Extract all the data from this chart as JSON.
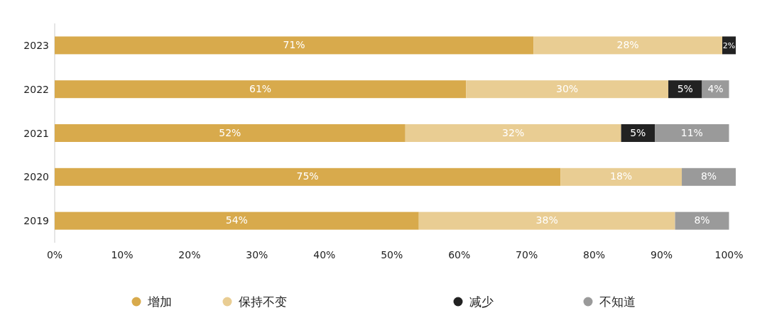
{
  "chart_data": {
    "type": "bar",
    "orientation": "horizontal",
    "stacked": true,
    "categories": [
      "2023",
      "2022",
      "2021",
      "2020",
      "2019"
    ],
    "series": [
      {
        "name": "增加",
        "color": "#d8aa4c",
        "values": [
          71,
          61,
          52,
          75,
          54
        ],
        "value_labels": [
          "71%",
          "61%",
          "52%",
          "75%",
          "54%"
        ]
      },
      {
        "name": "保持不变",
        "color": "#e9cd93",
        "values": [
          28,
          30,
          32,
          18,
          38
        ],
        "value_labels": [
          "28%",
          "30%",
          "32%",
          "18%",
          "38%"
        ]
      },
      {
        "name": "减少",
        "color": "#222222",
        "values": [
          2,
          5,
          5,
          null,
          null
        ],
        "value_labels": [
          "2%",
          "5%",
          "5%",
          null,
          null
        ]
      },
      {
        "name": "不知道",
        "color": "#9a9a9a",
        "values": [
          null,
          4,
          11,
          8,
          8
        ],
        "value_labels": [
          null,
          "4%",
          "11%",
          "8%",
          "8%"
        ]
      }
    ],
    "xlim": [
      0,
      101
    ],
    "xticks": [
      {
        "value": 0,
        "label": "0%"
      },
      {
        "value": 10,
        "label": "10%"
      },
      {
        "value": 20,
        "label": "20%"
      },
      {
        "value": 30,
        "label": "30%"
      },
      {
        "value": 40,
        "label": "40%"
      },
      {
        "value": 50,
        "label": "50%"
      },
      {
        "value": 60,
        "label": "60%"
      },
      {
        "value": 70,
        "label": "70%"
      },
      {
        "value": 80,
        "label": "80%"
      },
      {
        "value": 90,
        "label": "90%"
      },
      {
        "value": 100,
        "label": "100%"
      }
    ],
    "grid": false,
    "legend": "bottom"
  }
}
